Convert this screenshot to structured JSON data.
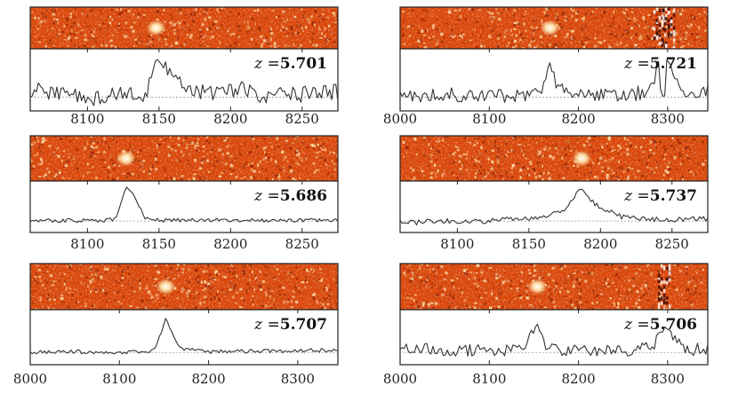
{
  "figure": {
    "background": "#ffffff",
    "image_colors": {
      "base": "#d9480c",
      "dark": "#8a1e02",
      "bright": "#ffe6b0",
      "peak": "#fffdf6"
    },
    "line_color": "#333333"
  },
  "chart_data": [
    {
      "type": "line",
      "panel": "top-left",
      "z_label": "z =",
      "z_value": "5.701",
      "xlim": [
        8060,
        8275
      ],
      "xticks": [
        8100,
        8150,
        8200,
        8250
      ],
      "tick_labels": [
        "8100",
        "8150",
        "8200",
        "8250"
      ],
      "line_wavelength": 8148,
      "noise_level": 0.18,
      "grid": false,
      "x": [
        8060,
        8075,
        8090,
        8105,
        8120,
        8135,
        8142,
        8146,
        8148,
        8152,
        8158,
        8165,
        8175,
        8190,
        8205,
        8220,
        8235,
        8250,
        8265,
        8275
      ],
      "y": [
        0.18,
        0.1,
        0.05,
        -0.05,
        0.05,
        0.02,
        0.1,
        0.6,
        0.85,
        0.7,
        0.5,
        0.35,
        0.15,
        0.05,
        0.2,
        0.0,
        0.1,
        0.05,
        0.15,
        0.1
      ]
    },
    {
      "type": "line",
      "panel": "top-right",
      "z_label": "z =",
      "z_value": "5.721",
      "xlim": [
        8000,
        8345
      ],
      "xticks": [
        8000,
        8100,
        8200,
        8300
      ],
      "tick_labels": [
        "8000",
        "8100",
        "8200",
        "8300"
      ],
      "line_wavelength": 8168,
      "noise_level": 0.16,
      "grid": false,
      "x": [
        8000,
        8050,
        8100,
        8140,
        8160,
        8165,
        8168,
        8172,
        8180,
        8200,
        8250,
        8280,
        8290,
        8295,
        8300,
        8320,
        8345
      ],
      "y": [
        0.0,
        0.05,
        0.02,
        0.05,
        0.1,
        0.6,
        0.75,
        0.4,
        0.15,
        0.05,
        0.05,
        0.1,
        0.7,
        -0.2,
        0.85,
        0.1,
        0.15
      ]
    },
    {
      "type": "line",
      "panel": "middle-left",
      "z_label": "z =",
      "z_value": "5.686",
      "xlim": [
        8060,
        8275
      ],
      "xticks": [
        8100,
        8150,
        8200,
        8250
      ],
      "tick_labels": [
        "8100",
        "8150",
        "8200",
        "8250"
      ],
      "line_wavelength": 8127,
      "noise_level": 0.05,
      "grid": false,
      "x": [
        8060,
        8090,
        8110,
        8120,
        8124,
        8127,
        8131,
        8136,
        8140,
        8150,
        8180,
        8220,
        8275
      ],
      "y": [
        0.0,
        0.02,
        0.0,
        0.05,
        0.55,
        0.9,
        0.75,
        0.4,
        0.1,
        0.02,
        0.02,
        0.02,
        0.03
      ]
    },
    {
      "type": "line",
      "panel": "middle-right",
      "z_label": "z =",
      "z_value": "5.737",
      "xlim": [
        8060,
        8275
      ],
      "xticks": [
        8100,
        8150,
        8200,
        8250
      ],
      "tick_labels": [
        "8100",
        "8150",
        "8200",
        "8250"
      ],
      "line_wavelength": 8187,
      "noise_level": 0.07,
      "grid": false,
      "x": [
        8060,
        8080,
        8100,
        8120,
        8140,
        8160,
        8175,
        8184,
        8187,
        8192,
        8200,
        8215,
        8235,
        8255,
        8275
      ],
      "y": [
        -0.05,
        -0.02,
        0.0,
        0.0,
        0.05,
        0.1,
        0.3,
        0.8,
        0.85,
        0.6,
        0.35,
        0.12,
        0.05,
        0.05,
        0.05
      ]
    },
    {
      "type": "line",
      "panel": "bottom-left",
      "z_label": "z =",
      "z_value": "5.707",
      "xlim": [
        8000,
        8345
      ],
      "xticks": [
        8000,
        8100,
        8200,
        8300
      ],
      "tick_labels": [
        "8000",
        "8100",
        "8200",
        "8300"
      ],
      "line_wavelength": 8152,
      "noise_level": 0.05,
      "grid": false,
      "x": [
        8000,
        8050,
        8100,
        8140,
        8148,
        8152,
        8157,
        8163,
        8170,
        8200,
        8250,
        8300,
        8345
      ],
      "y": [
        0.0,
        0.02,
        0.0,
        0.05,
        0.55,
        0.85,
        0.6,
        0.3,
        0.08,
        0.02,
        0.03,
        0.05,
        0.05
      ]
    },
    {
      "type": "line",
      "panel": "bottom-right",
      "z_label": "z =",
      "z_value": "5.706",
      "xlim": [
        8000,
        8345
      ],
      "xticks": [
        8000,
        8100,
        8200,
        8300
      ],
      "tick_labels": [
        "8000",
        "8100",
        "8200",
        "8300"
      ],
      "line_wavelength": 8154,
      "noise_level": 0.15,
      "grid": false,
      "x": [
        8000,
        8050,
        8100,
        8140,
        8148,
        8154,
        8158,
        8165,
        8180,
        8220,
        8260,
        8285,
        8295,
        8305,
        8320,
        8345
      ],
      "y": [
        0.15,
        0.05,
        0.05,
        0.05,
        0.5,
        0.7,
        0.4,
        0.1,
        0.05,
        0.05,
        0.05,
        0.2,
        0.65,
        0.35,
        0.05,
        0.1
      ]
    }
  ]
}
